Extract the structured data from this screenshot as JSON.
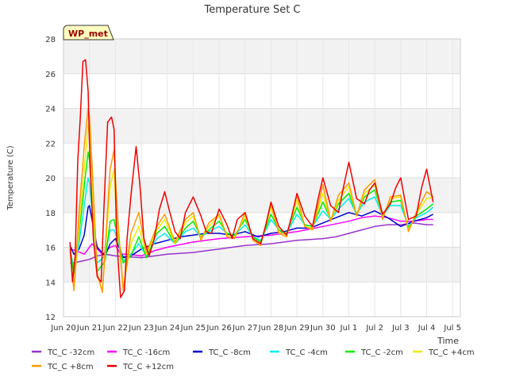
{
  "chart_data": {
    "type": "line",
    "title": "Temperature Set C",
    "xlabel": "Time",
    "ylabel": "Temperature (C)",
    "badge": "WP_met",
    "ylim": [
      12,
      28
    ],
    "yticks": [
      12,
      14,
      16,
      18,
      20,
      22,
      24,
      26,
      28
    ],
    "xlim": [
      0,
      15.3
    ],
    "xticks": [
      {
        "pos": 0,
        "label": "Jun 20"
      },
      {
        "pos": 1,
        "label": "Jun 21"
      },
      {
        "pos": 2,
        "label": "Jun 22"
      },
      {
        "pos": 3,
        "label": "Jun 23"
      },
      {
        "pos": 4,
        "label": "Jun 24"
      },
      {
        "pos": 5,
        "label": "Jun 25"
      },
      {
        "pos": 6,
        "label": "Jun 26"
      },
      {
        "pos": 7,
        "label": "Jun 27"
      },
      {
        "pos": 8,
        "label": "Jun 28"
      },
      {
        "pos": 9,
        "label": "Jun 29"
      },
      {
        "pos": 10,
        "label": "Jun 30"
      },
      {
        "pos": 11,
        "label": "Jul 1"
      },
      {
        "pos": 12,
        "label": "Jul 2"
      },
      {
        "pos": 13,
        "label": "Jul 3"
      },
      {
        "pos": 14,
        "label": "Jul 4"
      },
      {
        "pos": 15,
        "label": "Jul 5"
      }
    ],
    "grid": true,
    "bands": true,
    "legend_position": "bottom",
    "series": [
      {
        "name": "TC_C -32cm",
        "color": "#9933cc",
        "x": [
          0.25,
          0.4,
          0.7,
          1.0,
          1.3,
          1.6,
          2.0,
          3.0,
          4.0,
          5.0,
          6.0,
          7.0,
          8.0,
          9.0,
          10.0,
          10.5,
          11.0,
          11.5,
          12.0,
          12.5,
          13.0,
          13.5,
          14.0,
          14.25
        ],
        "y": [
          15.1,
          15.1,
          15.2,
          15.3,
          15.5,
          15.6,
          15.5,
          15.4,
          15.6,
          15.7,
          15.9,
          16.1,
          16.2,
          16.4,
          16.5,
          16.6,
          16.8,
          17.0,
          17.2,
          17.3,
          17.3,
          17.4,
          17.3,
          17.3
        ]
      },
      {
        "name": "TC_C -16cm",
        "color": "#ff00ff",
        "x": [
          0.25,
          0.5,
          0.8,
          1.0,
          1.1,
          1.3,
          1.5,
          1.8,
          2.0,
          2.2,
          2.5,
          3.0,
          3.5,
          4.0,
          5.0,
          6.0,
          7.0,
          8.0,
          9.0,
          10.0,
          11.0,
          11.5,
          12.0,
          12.5,
          13.0,
          13.5,
          14.0,
          14.25
        ],
        "y": [
          15.9,
          15.8,
          15.6,
          16.0,
          16.2,
          15.9,
          15.6,
          16.0,
          16.1,
          15.6,
          15.6,
          15.5,
          15.8,
          16.0,
          16.3,
          16.5,
          16.6,
          16.7,
          16.9,
          17.2,
          17.5,
          17.7,
          17.8,
          17.7,
          17.5,
          17.5,
          17.6,
          17.6
        ]
      },
      {
        "name": "TC_C -8cm",
        "color": "#0000cc",
        "x": [
          0.25,
          0.4,
          0.6,
          0.8,
          0.95,
          1.0,
          1.1,
          1.3,
          1.6,
          1.8,
          2.0,
          2.3,
          2.6,
          3.0,
          3.5,
          4.0,
          4.5,
          5.0,
          5.5,
          6.0,
          6.5,
          7.0,
          7.5,
          8.0,
          8.5,
          9.0,
          9.5,
          10.0,
          10.5,
          11.0,
          11.5,
          12.0,
          12.5,
          13.0,
          13.5,
          14.0,
          14.25
        ],
        "y": [
          16.1,
          15.6,
          15.9,
          16.7,
          18.3,
          18.4,
          17.6,
          16.0,
          15.5,
          16.2,
          16.5,
          15.4,
          15.5,
          15.9,
          16.2,
          16.4,
          16.6,
          16.7,
          16.8,
          16.8,
          16.7,
          16.9,
          16.6,
          16.8,
          16.9,
          17.1,
          17.1,
          17.4,
          17.7,
          18.0,
          17.8,
          18.1,
          17.7,
          17.2,
          17.5,
          17.7,
          17.9
        ]
      },
      {
        "name": "TC_C -4cm",
        "color": "#00eeee",
        "x": [
          0.25,
          0.4,
          0.6,
          0.8,
          0.95,
          1.0,
          1.1,
          1.3,
          1.6,
          1.8,
          1.95,
          2.0,
          2.1,
          2.3,
          2.6,
          2.9,
          3.2,
          3.6,
          3.9,
          4.3,
          4.7,
          5.0,
          5.3,
          5.6,
          6.0,
          6.3,
          6.6,
          7.0,
          7.3,
          7.6,
          8.0,
          8.3,
          8.6,
          9.0,
          9.3,
          9.6,
          10.0,
          10.3,
          10.6,
          11.0,
          11.3,
          11.6,
          12.0,
          12.3,
          12.6,
          13.0,
          13.3,
          13.6,
          14.0,
          14.25
        ],
        "y": [
          15.9,
          14.8,
          16.2,
          18.4,
          20.0,
          19.7,
          18.2,
          15.1,
          15.5,
          17.0,
          17.0,
          16.8,
          16.4,
          15.2,
          15.6,
          16.2,
          15.5,
          16.5,
          16.8,
          16.2,
          16.9,
          17.1,
          16.6,
          16.9,
          17.2,
          16.8,
          16.7,
          17.3,
          16.6,
          16.4,
          17.6,
          17.0,
          16.8,
          17.9,
          17.3,
          17.2,
          18.1,
          17.6,
          18.2,
          18.8,
          17.9,
          18.6,
          18.9,
          17.8,
          18.4,
          18.4,
          17.2,
          17.7,
          18.0,
          18.3
        ]
      },
      {
        "name": "TC_C -2cm",
        "color": "#00ee00",
        "x": [
          0.25,
          0.4,
          0.6,
          0.8,
          0.95,
          1.0,
          1.1,
          1.3,
          1.6,
          1.8,
          1.95,
          2.0,
          2.1,
          2.3,
          2.6,
          2.9,
          3.2,
          3.6,
          3.9,
          4.3,
          4.7,
          5.0,
          5.3,
          5.6,
          6.0,
          6.3,
          6.6,
          7.0,
          7.3,
          7.6,
          8.0,
          8.3,
          8.6,
          9.0,
          9.3,
          9.6,
          10.0,
          10.3,
          10.6,
          11.0,
          11.3,
          11.6,
          12.0,
          12.3,
          12.6,
          13.0,
          13.3,
          13.6,
          14.0,
          14.25
        ],
        "y": [
          15.8,
          14.5,
          16.8,
          19.5,
          21.5,
          21.0,
          19.0,
          14.6,
          15.2,
          17.5,
          17.6,
          17.2,
          16.6,
          15.1,
          15.5,
          16.6,
          15.4,
          16.8,
          17.2,
          16.2,
          17.1,
          17.5,
          16.6,
          17.0,
          17.5,
          16.8,
          16.7,
          17.6,
          16.6,
          16.3,
          17.9,
          17.0,
          16.8,
          18.3,
          17.3,
          17.2,
          18.6,
          17.6,
          18.5,
          19.1,
          17.9,
          18.9,
          19.3,
          17.8,
          18.6,
          18.7,
          17.1,
          17.8,
          18.2,
          18.5
        ]
      },
      {
        "name": "TC_C +4cm",
        "color": "#eeee00",
        "x": [
          0.25,
          0.4,
          0.6,
          0.8,
          0.95,
          1.0,
          1.1,
          1.3,
          1.5,
          1.8,
          1.95,
          2.0,
          2.1,
          2.3,
          2.6,
          2.9,
          3.2,
          3.6,
          3.9,
          4.3,
          4.7,
          5.0,
          5.3,
          5.6,
          6.0,
          6.3,
          6.6,
          7.0,
          7.3,
          7.6,
          8.0,
          8.3,
          8.6,
          9.0,
          9.3,
          9.6,
          10.0,
          10.3,
          10.6,
          11.0,
          11.3,
          11.6,
          12.0,
          12.3,
          12.6,
          13.0,
          13.3,
          13.6,
          14.0,
          14.25
        ],
        "y": [
          15.7,
          13.6,
          17.2,
          20.5,
          23.0,
          22.4,
          19.5,
          14.4,
          13.5,
          19.5,
          20.5,
          18.8,
          17.0,
          13.7,
          16.2,
          17.2,
          15.6,
          17.0,
          17.6,
          16.2,
          17.4,
          17.8,
          16.5,
          17.2,
          17.8,
          16.7,
          16.6,
          17.8,
          16.5,
          16.2,
          18.3,
          16.9,
          16.7,
          18.7,
          17.2,
          17.1,
          19.1,
          17.5,
          18.7,
          19.5,
          17.8,
          19.1,
          19.6,
          17.7,
          18.8,
          18.9,
          17.0,
          17.9,
          18.8,
          18.9
        ]
      },
      {
        "name": "TC_C +8cm",
        "color": "#ff9900",
        "x": [
          0.25,
          0.4,
          0.6,
          0.8,
          0.95,
          1.0,
          1.1,
          1.3,
          1.5,
          1.8,
          1.95,
          2.0,
          2.1,
          2.3,
          2.6,
          2.9,
          3.2,
          3.6,
          3.9,
          4.3,
          4.7,
          5.0,
          5.3,
          5.6,
          6.0,
          6.3,
          6.6,
          7.0,
          7.3,
          7.6,
          8.0,
          8.3,
          8.6,
          9.0,
          9.3,
          9.6,
          10.0,
          10.3,
          10.6,
          11.0,
          11.3,
          11.6,
          12.0,
          12.3,
          12.6,
          13.0,
          13.3,
          13.6,
          14.0,
          14.25
        ],
        "y": [
          15.9,
          13.5,
          18.0,
          21.8,
          24.0,
          23.6,
          20.8,
          14.5,
          13.4,
          20.5,
          21.6,
          20.0,
          17.5,
          13.5,
          16.8,
          18.0,
          15.7,
          17.2,
          17.9,
          16.3,
          17.6,
          18.0,
          16.4,
          17.4,
          17.9,
          16.6,
          16.5,
          18.0,
          16.4,
          16.1,
          18.5,
          16.8,
          16.6,
          19.0,
          17.2,
          17.0,
          19.6,
          17.5,
          19.0,
          19.7,
          17.8,
          19.3,
          19.9,
          17.6,
          18.9,
          19.0,
          16.9,
          18.0,
          19.2,
          18.9
        ]
      },
      {
        "name": "TC_C +12cm",
        "color": "#ee0000",
        "x": [
          0.25,
          0.35,
          0.45,
          0.55,
          0.65,
          0.75,
          0.85,
          0.95,
          1.0,
          1.05,
          1.15,
          1.3,
          1.45,
          1.55,
          1.7,
          1.85,
          1.95,
          2.05,
          2.2,
          2.35,
          2.45,
          2.6,
          2.8,
          2.95,
          3.1,
          3.3,
          3.5,
          3.7,
          3.9,
          4.1,
          4.3,
          4.5,
          4.7,
          5.0,
          5.3,
          5.5,
          5.7,
          6.0,
          6.3,
          6.5,
          6.7,
          7.0,
          7.3,
          7.6,
          7.8,
          8.0,
          8.3,
          8.6,
          8.8,
          9.0,
          9.3,
          9.6,
          9.8,
          10.0,
          10.3,
          10.6,
          10.8,
          11.0,
          11.3,
          11.6,
          11.8,
          12.0,
          12.3,
          12.6,
          12.8,
          13.0,
          13.3,
          13.6,
          13.8,
          14.0,
          14.25
        ],
        "y": [
          16.3,
          14.0,
          15.5,
          21.0,
          23.5,
          26.7,
          26.8,
          25.0,
          22.0,
          20.0,
          16.5,
          14.3,
          14.0,
          18.0,
          23.2,
          23.5,
          22.8,
          16.5,
          13.1,
          13.5,
          16.5,
          19.0,
          21.8,
          19.5,
          16.5,
          15.5,
          16.5,
          18.2,
          19.2,
          18.0,
          16.9,
          16.5,
          18.0,
          18.9,
          17.8,
          16.9,
          16.8,
          18.2,
          17.3,
          16.5,
          17.6,
          18.0,
          16.5,
          16.2,
          17.3,
          18.6,
          17.2,
          16.7,
          17.8,
          19.1,
          17.8,
          17.2,
          18.7,
          20.0,
          18.4,
          18.0,
          19.5,
          20.9,
          18.8,
          18.5,
          19.3,
          19.7,
          17.9,
          18.5,
          19.4,
          20.0,
          17.6,
          17.8,
          19.4,
          20.5,
          18.6
        ]
      }
    ]
  }
}
